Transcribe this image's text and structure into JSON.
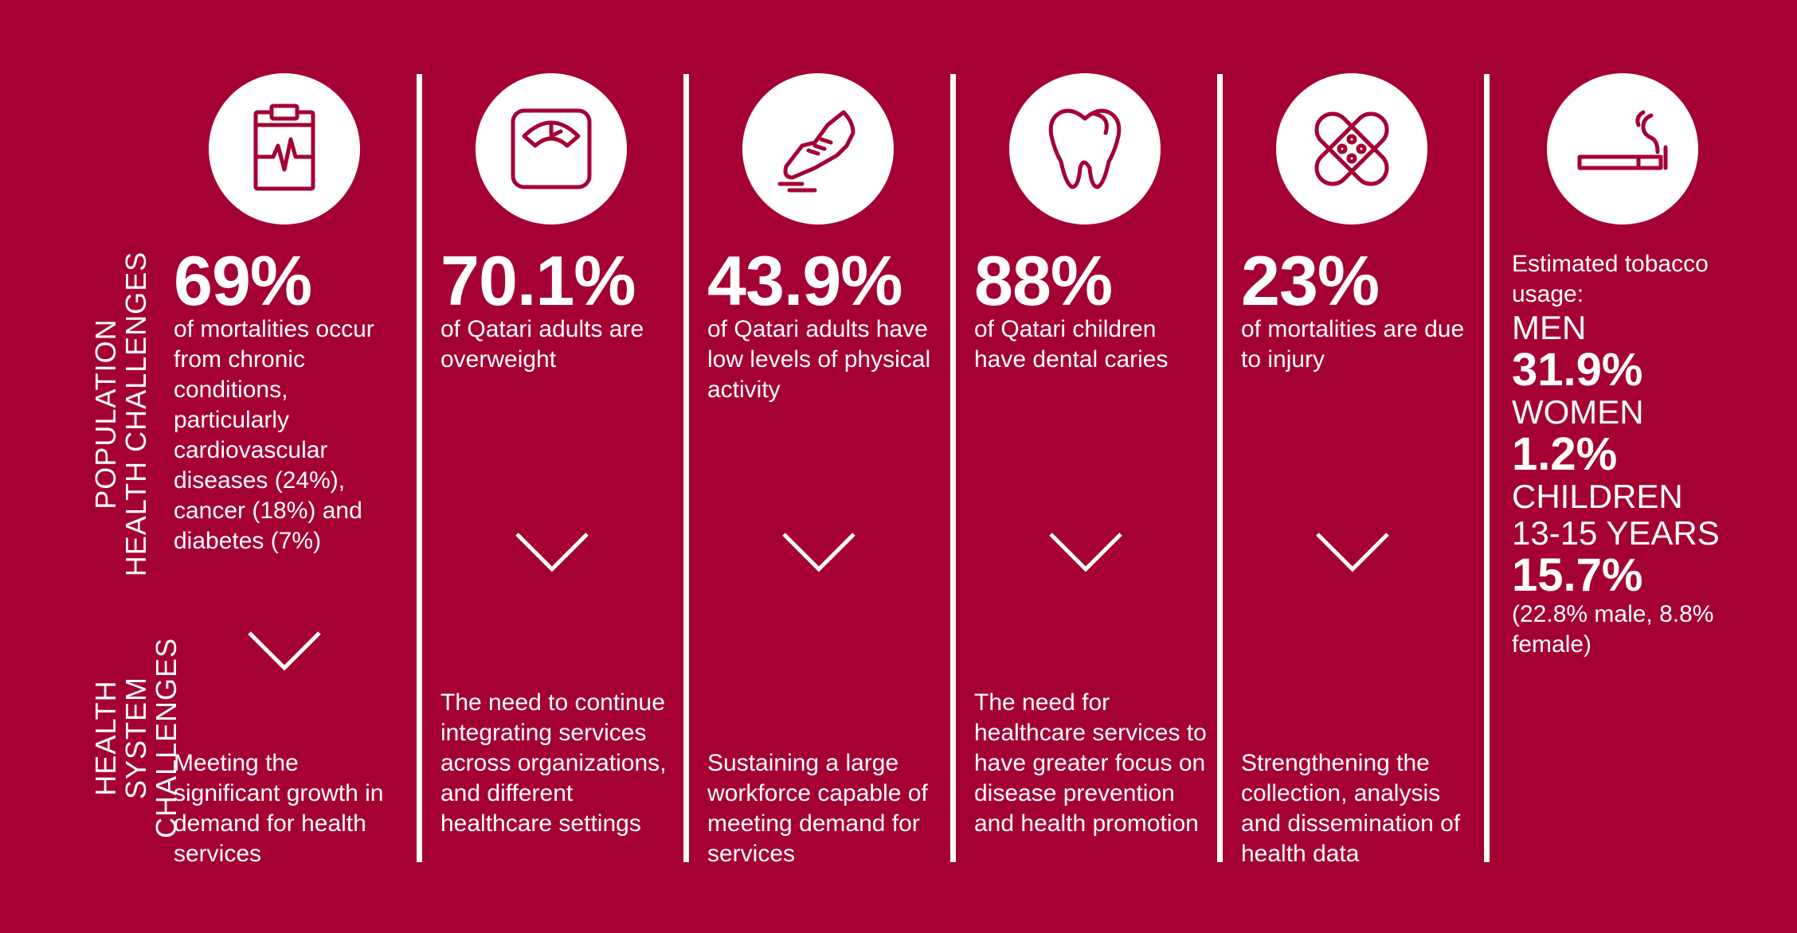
{
  "side_labels": {
    "population": "POPULATION\nHEALTH CHALLENGES",
    "health_system": "HEALTH SYSTEM\nCHALLENGES"
  },
  "columns": [
    {
      "icon": "clipboard-heartbeat-icon",
      "stat": "69%",
      "description": "of mortalities occur from chronic conditions, particularly cardiovascular diseases (24%), cancer (18%) and diabetes (7%)",
      "system_challenge": "Meeting the significant growth in demand for health services"
    },
    {
      "icon": "weighing-scale-icon",
      "stat": "70.1%",
      "description": "of Qatari adults are overweight",
      "system_challenge": "The need to continue integrating services across organizations, and different healthcare settings"
    },
    {
      "icon": "running-shoe-icon",
      "stat": "43.9%",
      "description": "of Qatari adults have low levels of physical activity",
      "system_challenge": "Sustaining a large workforce capable of meeting demand for services"
    },
    {
      "icon": "tooth-icon",
      "stat": "88%",
      "description": "of Qatari children have dental caries",
      "system_challenge": "The need for healthcare services to have greater focus on disease prevention and health promotion"
    },
    {
      "icon": "bandage-icon",
      "stat": "23%",
      "description": "of mortalities are due to injury",
      "system_challenge": "Strengthening the collection, analysis and dissemination of health data"
    }
  ],
  "tobacco": {
    "icon": "cigarette-icon",
    "intro": "Estimated tobacco usage:",
    "men_label": "MEN",
    "men_value": "31.9%",
    "women_label": "WOMEN",
    "women_value": "1.2%",
    "children_label": "CHILDREN",
    "children_age": "13-15 YEARS",
    "children_value": "15.7%",
    "children_breakdown": "(22.8% male, 8.8% female)"
  },
  "colors": {
    "background": "#A50034",
    "foreground": "#FFFFFF"
  }
}
